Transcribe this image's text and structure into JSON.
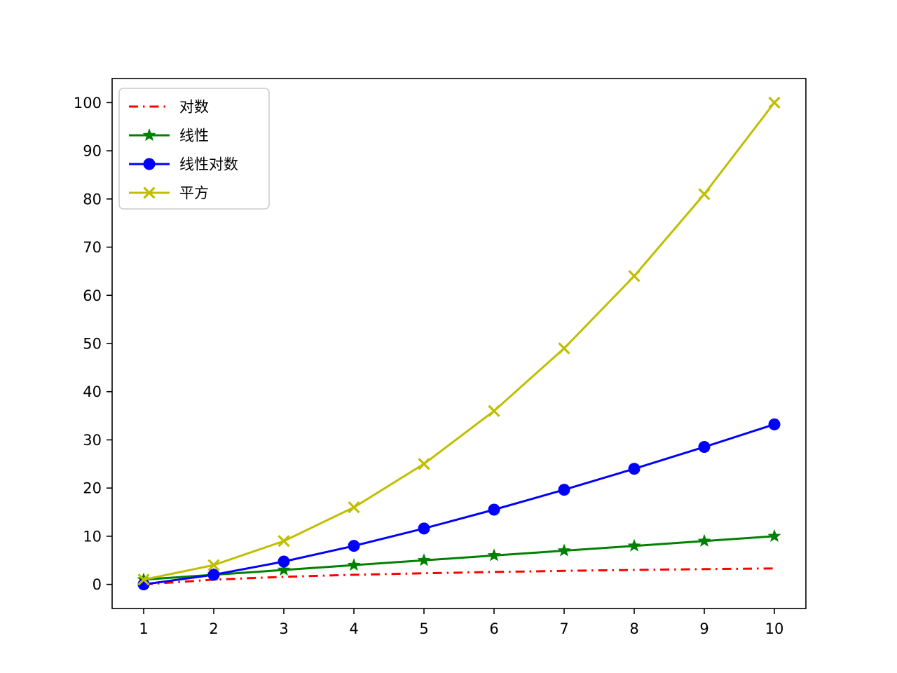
{
  "chart_data": {
    "type": "line",
    "title": "",
    "xlabel": "",
    "ylabel": "",
    "x": [
      1,
      2,
      3,
      4,
      5,
      6,
      7,
      8,
      9,
      10
    ],
    "xticks": [
      1,
      2,
      3,
      4,
      5,
      6,
      7,
      8,
      9,
      10
    ],
    "yticks": [
      0,
      10,
      20,
      30,
      40,
      50,
      60,
      70,
      80,
      90,
      100
    ],
    "xlim": [
      0.55,
      10.45
    ],
    "ylim": [
      -5,
      105
    ],
    "grid": false,
    "legend_position": "upper-left",
    "series": [
      {
        "name": "对数",
        "color": "#ff0000",
        "linestyle": "dashdot",
        "marker": "none",
        "values": [
          0,
          1,
          1.58,
          2,
          2.32,
          2.58,
          2.81,
          3,
          3.17,
          3.32
        ]
      },
      {
        "name": "线性",
        "color": "#008000",
        "linestyle": "solid",
        "marker": "star",
        "values": [
          1,
          2,
          3,
          4,
          5,
          6,
          7,
          8,
          9,
          10
        ]
      },
      {
        "name": "线性对数",
        "color": "#0000ff",
        "linestyle": "solid",
        "marker": "circle",
        "values": [
          0,
          2,
          4.75,
          8,
          11.61,
          15.51,
          19.65,
          24,
          28.53,
          33.22
        ]
      },
      {
        "name": "平方",
        "color": "#bfbf00",
        "linestyle": "solid",
        "marker": "x",
        "values": [
          1,
          4,
          9,
          16,
          25,
          36,
          49,
          64,
          81,
          100
        ]
      }
    ]
  }
}
